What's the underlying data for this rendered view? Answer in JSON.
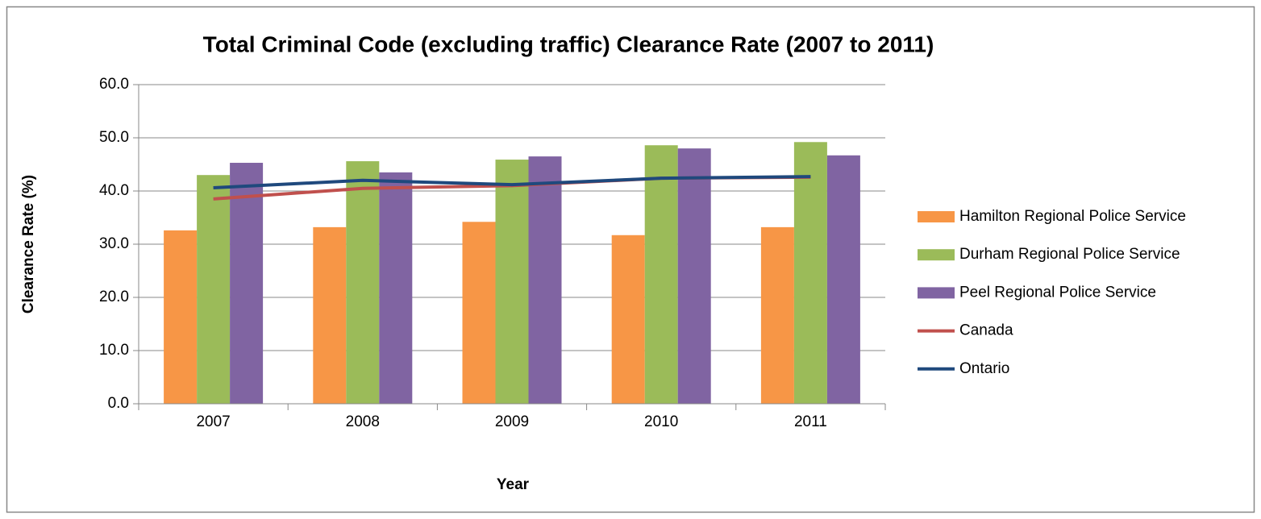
{
  "chart_data": {
    "type": "bar",
    "title": "Total Criminal Code (excluding traffic) Clearance Rate (2007 to 2011)",
    "x_label": "Year",
    "y_label": "Clearance Rate (%)",
    "categories": [
      "2007",
      "2008",
      "2009",
      "2010",
      "2011"
    ],
    "series": [
      {
        "name": "Hamilton Regional Police Service",
        "type": "bar",
        "color": "#f79646",
        "values": [
          32.6,
          33.2,
          34.2,
          31.7,
          33.2
        ]
      },
      {
        "name": "Durham Regional Police Service",
        "type": "bar",
        "color": "#9bbb59",
        "values": [
          43.0,
          45.6,
          45.9,
          48.6,
          49.2
        ]
      },
      {
        "name": "Peel Regional Police Service",
        "type": "bar",
        "color": "#8064a2",
        "values": [
          45.3,
          43.5,
          46.5,
          48.0,
          46.7
        ]
      },
      {
        "name": "Canada",
        "type": "line",
        "color": "#c0504d",
        "values": [
          38.5,
          40.5,
          41.0,
          42.4,
          42.6
        ]
      },
      {
        "name": "Ontario",
        "type": "line",
        "color": "#1f497d",
        "values": [
          40.6,
          42.0,
          41.2,
          42.4,
          42.7
        ]
      }
    ],
    "ylim": [
      0,
      60
    ],
    "yticks": [
      {
        "value": 0,
        "label": "0.0"
      },
      {
        "value": 10,
        "label": "10.0"
      },
      {
        "value": 20,
        "label": "20.0"
      },
      {
        "value": 30,
        "label": "30.0"
      },
      {
        "value": 40,
        "label": "40.0"
      },
      {
        "value": 50,
        "label": "50.0"
      },
      {
        "value": 60,
        "label": "60.0"
      }
    ],
    "grid": true,
    "legend": "right"
  }
}
